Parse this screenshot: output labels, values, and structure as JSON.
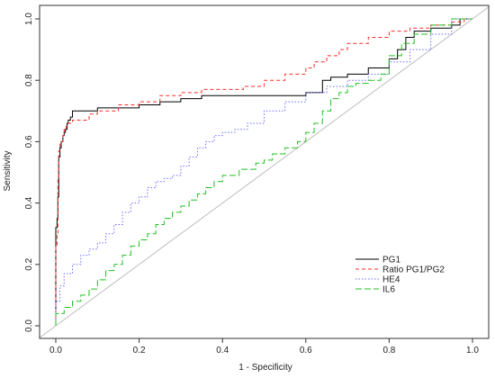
{
  "chart_data": {
    "type": "line",
    "title": "",
    "xlabel": "1 - Specificity",
    "ylabel": "Sensitivity",
    "xlim": [
      0,
      1
    ],
    "ylim": [
      0,
      1
    ],
    "x_ticks": [
      "0.0",
      "0.2",
      "0.4",
      "0.6",
      "0.8",
      "1.0"
    ],
    "y_ticks": [
      "0.0",
      "0.2",
      "0.4",
      "0.6",
      "0.8",
      "1.0"
    ],
    "grid": false,
    "legend_position": "bottom-right",
    "reference_line": {
      "from": [
        0,
        0
      ],
      "to": [
        1,
        1
      ],
      "color": "#bdbdbd"
    },
    "series": [
      {
        "name": "PG1",
        "color": "#000000",
        "style": "solid",
        "x": [
          0,
          0.003,
          0.005,
          0.007,
          0.01,
          0.013,
          0.017,
          0.02,
          0.023,
          0.027,
          0.03,
          0.035,
          0.04,
          0.05,
          0.06,
          0.1,
          0.15,
          0.2,
          0.25,
          0.3,
          0.35,
          0.4,
          0.45,
          0.5,
          0.55,
          0.6,
          0.64,
          0.66,
          0.68,
          0.7,
          0.75,
          0.8,
          0.82,
          0.84,
          0.86,
          0.9,
          0.95,
          0.97,
          0.98,
          1.0
        ],
        "y": [
          0,
          0.32,
          0.35,
          0.42,
          0.55,
          0.58,
          0.6,
          0.62,
          0.63,
          0.64,
          0.66,
          0.67,
          0.68,
          0.7,
          0.7,
          0.7,
          0.71,
          0.71,
          0.72,
          0.73,
          0.74,
          0.75,
          0.75,
          0.75,
          0.75,
          0.75,
          0.76,
          0.8,
          0.81,
          0.81,
          0.82,
          0.84,
          0.87,
          0.9,
          0.94,
          0.96,
          0.97,
          0.98,
          1.0,
          1.0
        ]
      },
      {
        "name": "Ratio PG1/PG2",
        "color": "#ff2a2a",
        "style": "dashed",
        "x": [
          0,
          0.003,
          0.005,
          0.007,
          0.01,
          0.013,
          0.017,
          0.02,
          0.025,
          0.03,
          0.04,
          0.05,
          0.06,
          0.08,
          0.1,
          0.15,
          0.2,
          0.25,
          0.3,
          0.35,
          0.4,
          0.45,
          0.5,
          0.55,
          0.6,
          0.62,
          0.65,
          0.68,
          0.7,
          0.75,
          0.8,
          0.85,
          0.9,
          0.95,
          0.98,
          1.0
        ],
        "y": [
          0,
          0.26,
          0.3,
          0.48,
          0.57,
          0.6,
          0.6,
          0.62,
          0.64,
          0.65,
          0.66,
          0.67,
          0.67,
          0.67,
          0.69,
          0.7,
          0.72,
          0.73,
          0.75,
          0.76,
          0.77,
          0.77,
          0.78,
          0.8,
          0.82,
          0.84,
          0.86,
          0.88,
          0.9,
          0.92,
          0.94,
          0.96,
          0.97,
          0.98,
          0.99,
          1.0
        ]
      },
      {
        "name": "HE4",
        "color": "#6b6bff",
        "style": "dotted",
        "x": [
          0,
          0.01,
          0.02,
          0.04,
          0.06,
          0.08,
          0.1,
          0.12,
          0.14,
          0.16,
          0.18,
          0.2,
          0.22,
          0.24,
          0.26,
          0.28,
          0.3,
          0.32,
          0.34,
          0.36,
          0.38,
          0.4,
          0.43,
          0.46,
          0.5,
          0.55,
          0.6,
          0.65,
          0.7,
          0.75,
          0.8,
          0.85,
          0.9,
          0.95,
          1.0
        ],
        "y": [
          0,
          0.08,
          0.13,
          0.17,
          0.2,
          0.23,
          0.25,
          0.27,
          0.3,
          0.33,
          0.37,
          0.4,
          0.42,
          0.45,
          0.47,
          0.48,
          0.49,
          0.52,
          0.55,
          0.58,
          0.6,
          0.62,
          0.63,
          0.64,
          0.66,
          0.7,
          0.73,
          0.76,
          0.78,
          0.8,
          0.82,
          0.86,
          0.9,
          0.95,
          1.0
        ]
      },
      {
        "name": "IL6",
        "color": "#22c022",
        "style": "longdash",
        "x": [
          0,
          0.02,
          0.04,
          0.06,
          0.08,
          0.1,
          0.12,
          0.14,
          0.16,
          0.18,
          0.2,
          0.22,
          0.24,
          0.26,
          0.28,
          0.3,
          0.32,
          0.34,
          0.36,
          0.38,
          0.4,
          0.44,
          0.48,
          0.5,
          0.52,
          0.55,
          0.58,
          0.6,
          0.62,
          0.64,
          0.66,
          0.68,
          0.7,
          0.72,
          0.75,
          0.78,
          0.8,
          0.83,
          0.86,
          0.9,
          0.95,
          1.0
        ],
        "y": [
          0,
          0.04,
          0.06,
          0.08,
          0.1,
          0.12,
          0.15,
          0.18,
          0.2,
          0.23,
          0.26,
          0.28,
          0.3,
          0.33,
          0.35,
          0.37,
          0.39,
          0.41,
          0.43,
          0.45,
          0.47,
          0.49,
          0.51,
          0.53,
          0.54,
          0.56,
          0.58,
          0.6,
          0.63,
          0.66,
          0.7,
          0.74,
          0.76,
          0.78,
          0.79,
          0.8,
          0.82,
          0.88,
          0.92,
          0.95,
          0.98,
          1.0
        ]
      }
    ]
  }
}
